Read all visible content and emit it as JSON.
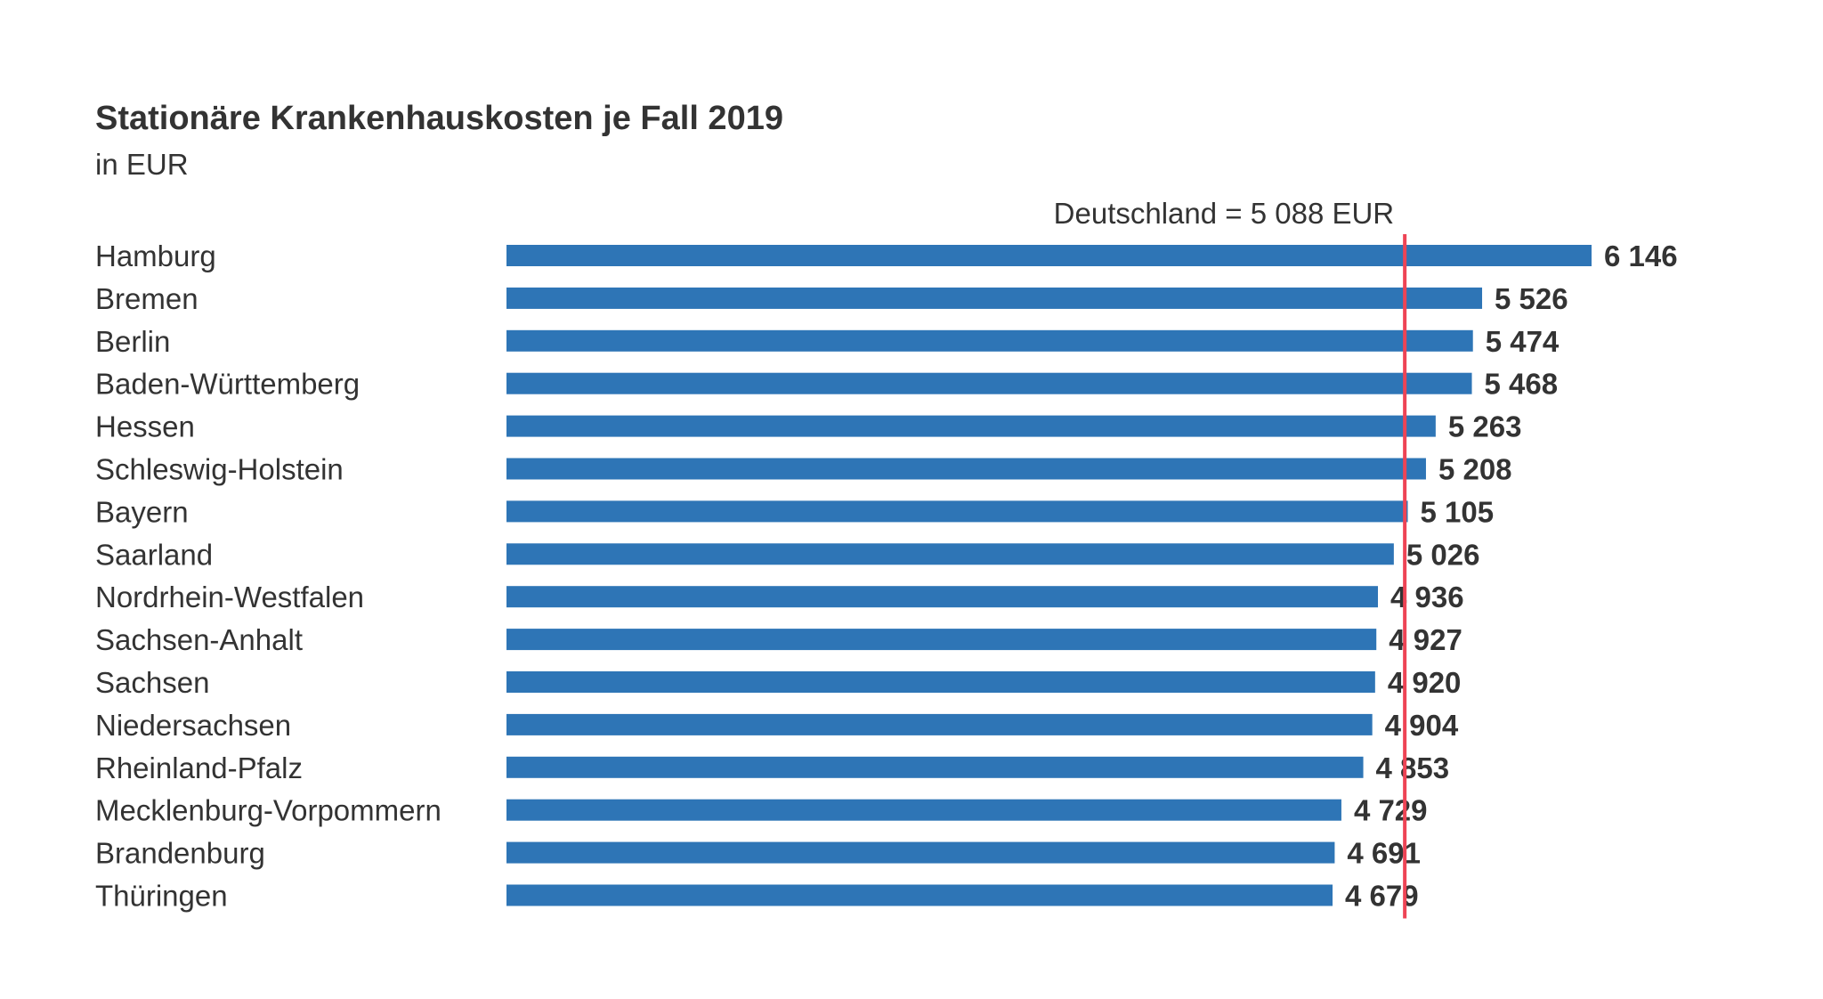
{
  "chart_data": {
    "type": "bar",
    "orientation": "horizontal",
    "title": "Stationäre Krankenhauskosten je Fall 2019",
    "subtitle": "in EUR",
    "categories": [
      "Hamburg",
      "Bremen",
      "Berlin",
      "Baden-Württemberg",
      "Hessen",
      "Schleswig-Holstein",
      "Bayern",
      "Saarland",
      "Nordrhein-Westfalen",
      "Sachsen-Anhalt",
      "Sachsen",
      "Niedersachsen",
      "Rheinland-Pfalz",
      "Mecklenburg-Vorpommern",
      "Brandenburg",
      "Thüringen"
    ],
    "values": [
      6146,
      5526,
      5474,
      5468,
      5263,
      5208,
      5105,
      5026,
      4936,
      4927,
      4920,
      4904,
      4853,
      4729,
      4691,
      4679
    ],
    "value_labels": [
      "6 146",
      "5 526",
      "5 474",
      "5 468",
      "5 263",
      "5 208",
      "5 105",
      "5 026",
      "4 936",
      "4 927",
      "4 920",
      "4 904",
      "4 853",
      "4 729",
      "4 691",
      "4 679"
    ],
    "reference_line": {
      "value": 5088,
      "label": "Deutschland = 5 088 EUR",
      "color": "#ee4455"
    },
    "bar_color": "#2e75b6",
    "xlim": [
      0,
      6146
    ],
    "grid": false,
    "legend": "none"
  }
}
